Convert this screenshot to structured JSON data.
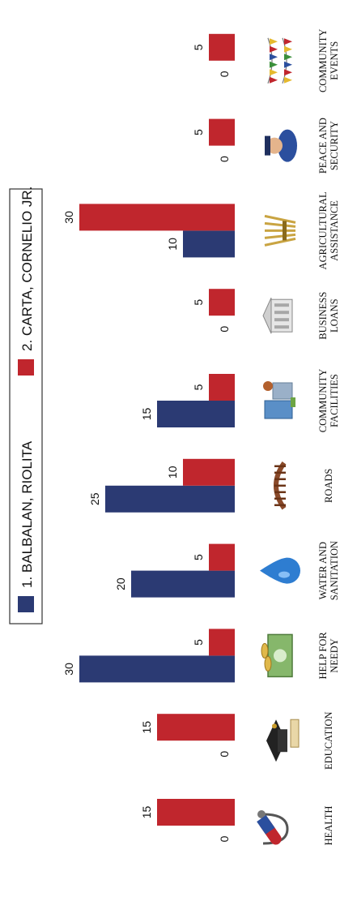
{
  "chart_data": {
    "type": "bar",
    "orientation": "horizontal",
    "categories": [
      [
        "HEALTH"
      ],
      [
        "EDUCATION"
      ],
      [
        "HELP FOR",
        "NEEDY"
      ],
      [
        "WATER AND",
        "SANITATION"
      ],
      [
        "ROADS"
      ],
      [
        "COMMUNITY",
        "FACILITIES"
      ],
      [
        "BUSINESS",
        "LOANS"
      ],
      [
        "AGRICULTURAL",
        "ASSISTANCE"
      ],
      [
        "PEACE AND",
        "SECURITY"
      ],
      [
        "COMMUNITY",
        "EVENTS"
      ]
    ],
    "series": [
      {
        "name": "1. BALBALAN, RIOLITA",
        "color": "#2b3a73",
        "values": [
          0,
          0,
          30,
          20,
          25,
          15,
          0,
          10,
          0,
          0
        ]
      },
      {
        "name": "2. CARTA, CORNELIO JR.",
        "color": "#c0262d",
        "values": [
          15,
          15,
          5,
          5,
          10,
          5,
          5,
          30,
          5,
          5
        ]
      }
    ],
    "xlim": [
      0,
      30
    ],
    "grid": false,
    "legend_position": "top",
    "category_icons": [
      "stethoscope-pill-icon",
      "graduation-cap-diploma-icon",
      "money-coins-icon",
      "water-drop-icon",
      "wooden-bridge-icon",
      "community-buildings-icon",
      "bank-building-icon",
      "wheat-bundle-icon",
      "police-officer-icon",
      "bunting-flags-icon"
    ]
  }
}
